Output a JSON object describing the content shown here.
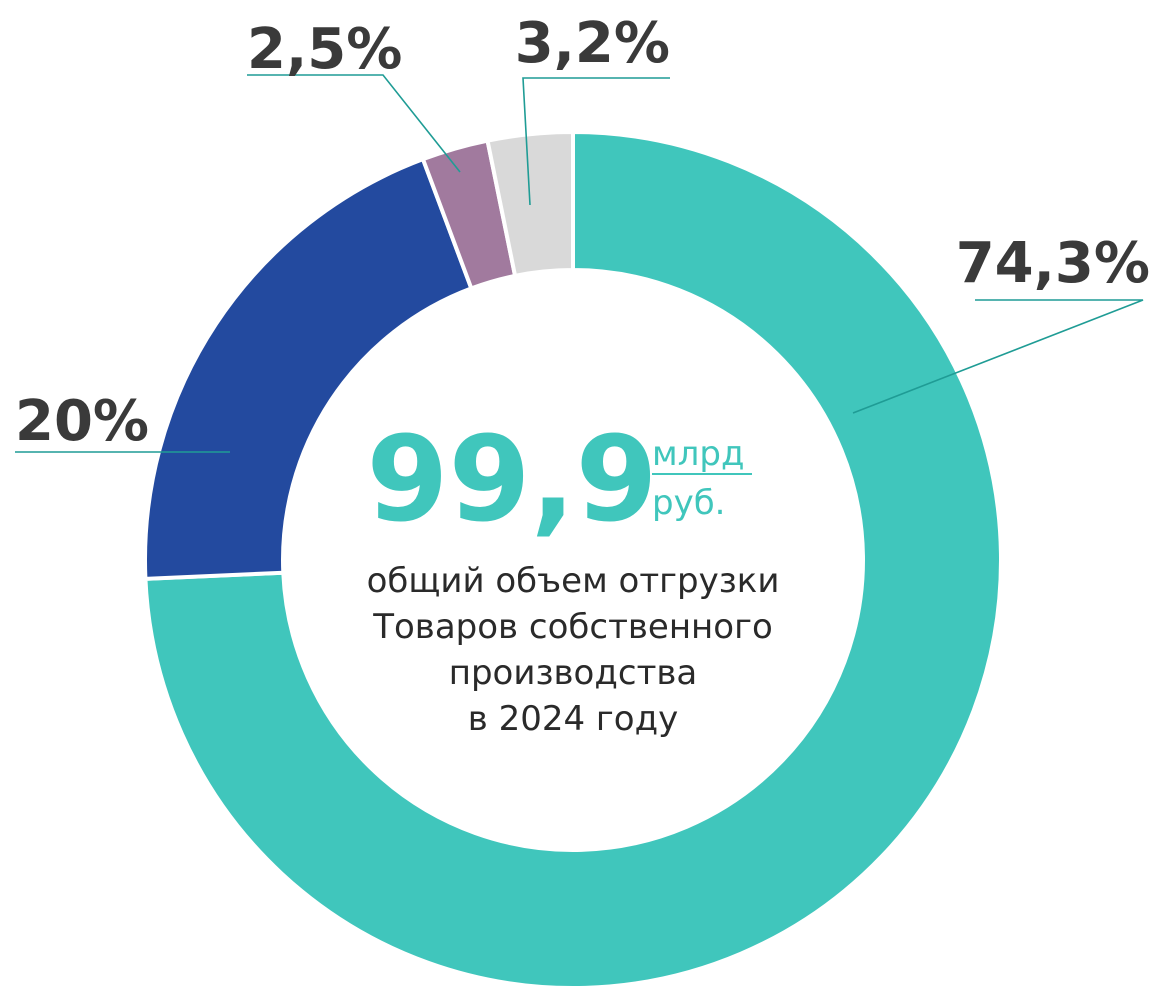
{
  "chart_data": {
    "type": "donut",
    "values": [
      74.3,
      20,
      2.5,
      3.2
    ],
    "value_labels": [
      "74,3%",
      "20%",
      "2,5%",
      "3,2%"
    ],
    "colors": [
      "#40c6bc",
      "#234a9f",
      "#a17a9e",
      "#d9d9d9"
    ],
    "center_value": "99,9",
    "center_unit": [
      "млрд",
      "руб."
    ],
    "center_text": [
      "общий объем отгрузки",
      "Товаров собственного",
      "производства",
      "в 2024 году"
    ]
  }
}
